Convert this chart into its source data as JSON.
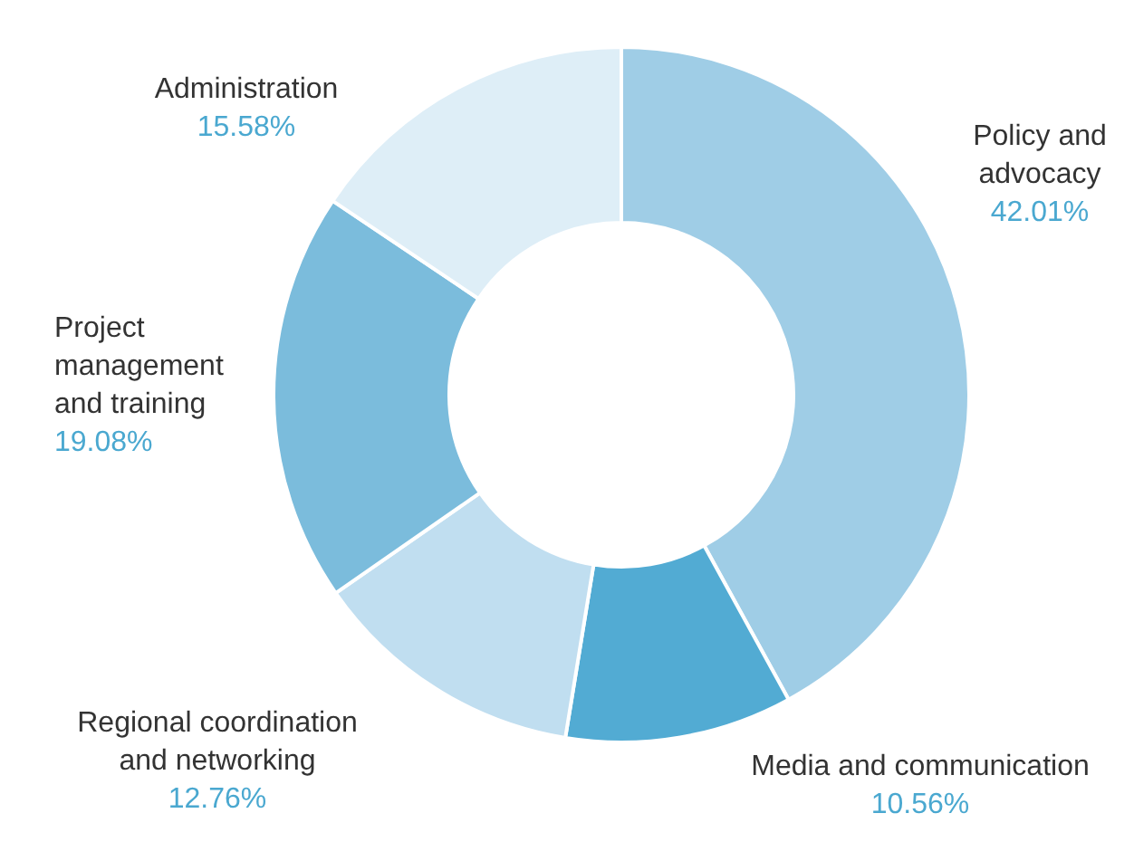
{
  "chart_data": {
    "type": "donut",
    "categories": [
      "Policy and advocacy",
      "Media and communication",
      "Regional coordination and networking",
      "Project management and training",
      "Administration"
    ],
    "values": [
      42.01,
      10.56,
      12.76,
      19.08,
      15.58
    ],
    "value_labels": [
      "42.01%",
      "10.56%",
      "12.76%",
      "19.08%",
      "15.58%"
    ],
    "colors": [
      "#9fcde6",
      "#52abd3",
      "#c0def0",
      "#7bbcdc",
      "#deeef7"
    ]
  }
}
